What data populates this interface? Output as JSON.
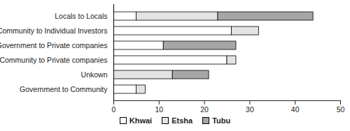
{
  "chart_data": {
    "type": "bar",
    "orientation": "horizontal",
    "stacked": true,
    "categories": [
      "Locals to Locals",
      "Community to Individual Investors",
      "Government to Private companies",
      "Community to Private companies",
      "Unkown",
      "Government to Community"
    ],
    "series": [
      {
        "name": "Khwai",
        "color": "#ffffff",
        "values": [
          5,
          26,
          11,
          25,
          0,
          5
        ]
      },
      {
        "name": "Etsha",
        "color": "#e3e3e3",
        "values": [
          18,
          6,
          0,
          2,
          13,
          2
        ]
      },
      {
        "name": "Tubu",
        "color": "#a6a6a6",
        "values": [
          21,
          0,
          16,
          0,
          8,
          0
        ]
      }
    ],
    "xlim": [
      0,
      50
    ],
    "xticks": [
      0,
      10,
      20,
      30,
      40,
      50
    ],
    "grid": false,
    "legend": "bottom"
  }
}
